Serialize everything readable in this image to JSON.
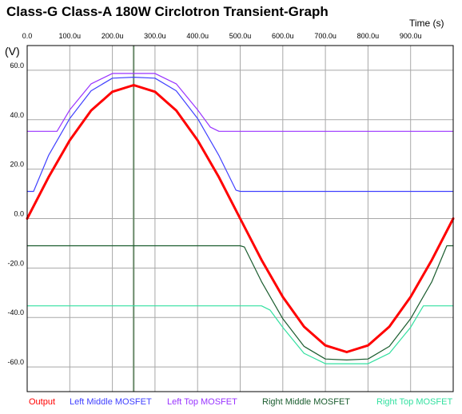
{
  "chart_data": {
    "type": "line",
    "title": "Class-G Class-A 180W Circlotron Transient-Graph",
    "xlabel": "Time  (s)",
    "ylabel": "(V)",
    "xlim": [
      0,
      1000
    ],
    "ylim": [
      -70,
      70
    ],
    "x_ticks": [
      {
        "value": 0,
        "label": "0.0"
      },
      {
        "value": 100,
        "label": "100.0u"
      },
      {
        "value": 200,
        "label": "200.0u"
      },
      {
        "value": 300,
        "label": "300.0u"
      },
      {
        "value": 400,
        "label": "400.0u"
      },
      {
        "value": 500,
        "label": "500.0u"
      },
      {
        "value": 600,
        "label": "600.0u"
      },
      {
        "value": 700,
        "label": "700.0u"
      },
      {
        "value": 800,
        "label": "800.0u"
      },
      {
        "value": 900,
        "label": "900.0u"
      }
    ],
    "y_ticks": [
      {
        "value": 60,
        "label": "60.0"
      },
      {
        "value": 40,
        "label": "40.0"
      },
      {
        "value": 20,
        "label": "20.0"
      },
      {
        "value": 0,
        "label": "0.0"
      },
      {
        "value": -20,
        "label": "-20.0"
      },
      {
        "value": -40,
        "label": "-40.0"
      },
      {
        "value": -60,
        "label": "-60.0"
      }
    ],
    "cursor_x": 250,
    "grid": true,
    "legend_position": "bottom",
    "series": [
      {
        "name": "Output",
        "color": "#ff0000",
        "x": [
          0,
          50,
          100,
          150,
          200,
          250,
          300,
          350,
          400,
          450,
          500,
          550,
          600,
          650,
          700,
          750,
          800,
          850,
          900,
          950,
          1000
        ],
        "y": [
          0,
          16.7,
          31.7,
          43.7,
          51.3,
          54,
          51.3,
          43.7,
          31.7,
          16.7,
          0,
          -16.7,
          -31.7,
          -43.7,
          -51.3,
          -54,
          -51.3,
          -43.7,
          -31.7,
          -16.7,
          0
        ]
      },
      {
        "name": "Left Middle MOSFET",
        "color": "#4040ff",
        "x": [
          0,
          15,
          50,
          100,
          150,
          200,
          250,
          300,
          350,
          400,
          450,
          490,
          500,
          600,
          700,
          800,
          900,
          1000
        ],
        "y": [
          11,
          11,
          25.5,
          40.5,
          51.7,
          56.8,
          57.2,
          56.8,
          51.7,
          40.5,
          25.5,
          11.5,
          11,
          11,
          11,
          11,
          11,
          11
        ]
      },
      {
        "name": "Left Top MOSFET",
        "color": "#9933ff",
        "x": [
          0,
          70,
          100,
          150,
          200,
          250,
          300,
          350,
          400,
          430,
          450,
          500,
          600,
          700,
          800,
          900,
          1000
        ],
        "y": [
          35.3,
          35.3,
          44,
          54.5,
          58.7,
          58.7,
          58.7,
          54.5,
          44,
          37,
          35.3,
          35.3,
          35.3,
          35.3,
          35.3,
          35.3,
          35.3
        ]
      },
      {
        "name": "Right Middle MOSFET",
        "color": "#1a5c2e",
        "x": [
          0,
          100,
          200,
          300,
          400,
          500,
          510,
          550,
          600,
          650,
          700,
          750,
          800,
          850,
          900,
          950,
          985,
          1000
        ],
        "y": [
          -11,
          -11,
          -11,
          -11,
          -11,
          -11,
          -11.5,
          -25.5,
          -40.5,
          -51.7,
          -56.8,
          -57.2,
          -56.8,
          -51.7,
          -40.5,
          -25.5,
          -11,
          -11
        ]
      },
      {
        "name": "Right Top MOSFET",
        "color": "#33e0a0",
        "x": [
          0,
          100,
          200,
          300,
          500,
          550,
          570,
          600,
          650,
          700,
          750,
          800,
          850,
          900,
          930,
          1000
        ],
        "y": [
          -35.3,
          -35.3,
          -35.3,
          -35.3,
          -35.3,
          -35.3,
          -37,
          -44,
          -54.5,
          -58.7,
          -58.7,
          -58.7,
          -54.5,
          -44,
          -35.3,
          -35.3
        ]
      }
    ]
  }
}
